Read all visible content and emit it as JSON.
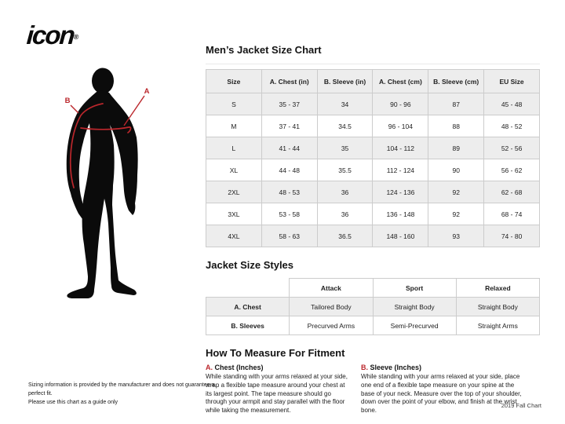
{
  "logo": {
    "text": "icon",
    "registered": "®"
  },
  "figure": {
    "label_a": "A",
    "label_b": "B"
  },
  "size_chart": {
    "title": "Men’s Jacket Size Chart",
    "columns": [
      "Size",
      "A. Chest (in)",
      "B. Sleeve (in)",
      "A. Chest (cm)",
      "B. Sleeve (cm)",
      "EU Size"
    ],
    "rows": [
      [
        "S",
        "35 - 37",
        "34",
        "90 - 96",
        "87",
        "45 - 48"
      ],
      [
        "M",
        "37 - 41",
        "34.5",
        "96 - 104",
        "88",
        "48 - 52"
      ],
      [
        "L",
        "41 - 44",
        "35",
        "104 - 112",
        "89",
        "52 - 56"
      ],
      [
        "XL",
        "44 - 48",
        "35.5",
        "112 - 124",
        "90",
        "56 - 62"
      ],
      [
        "2XL",
        "48 - 53",
        "36",
        "124 - 136",
        "92",
        "62 - 68"
      ],
      [
        "3XL",
        "53 - 58",
        "36",
        "136 - 148",
        "92",
        "68 - 74"
      ],
      [
        "4XL",
        "58 - 63",
        "36.5",
        "148 - 160",
        "93",
        "74 - 80"
      ]
    ]
  },
  "styles_chart": {
    "title": "Jacket Size Styles",
    "columns": [
      "",
      "Attack",
      "Sport",
      "Relaxed"
    ],
    "rows": [
      [
        "A. Chest",
        "Tailored Body",
        "Straight Body",
        "Straight Body"
      ],
      [
        "B. Sleeves",
        "Precurved Arms",
        "Semi-Precurved",
        "Straight Arms"
      ]
    ]
  },
  "measure": {
    "title": "How To Measure For Fitment",
    "sections": [
      {
        "letter": "A.",
        "heading": "Chest (Inches)",
        "body": "While standing with your arms relaxed at your side, wrap a flexible tape measure around your chest at its largest point. The tape measure should go through your armpit and stay parallel with the floor while taking the measurement."
      },
      {
        "letter": "B.",
        "heading": "Sleeve (Inches)",
        "body": "While standing with your arms relaxed at your side, place one end of a flexible tape measure on your spine at the base of your neck. Measure over the top of your shoulder, down over the point of your elbow, and finish at the wrist bone."
      }
    ]
  },
  "footer": {
    "disclaimer_line1": "Sizing information is provided by the manufacturer and does not guarantee a perfect fit.",
    "disclaimer_line2": "Please use this chart as a guide only",
    "chart_date": "2019 Fall Chart"
  },
  "colors": {
    "accent_red": "#bb272c",
    "row_gray": "#ededed",
    "table_border": "#cccccc",
    "silhouette_black": "#0b0b0b"
  }
}
